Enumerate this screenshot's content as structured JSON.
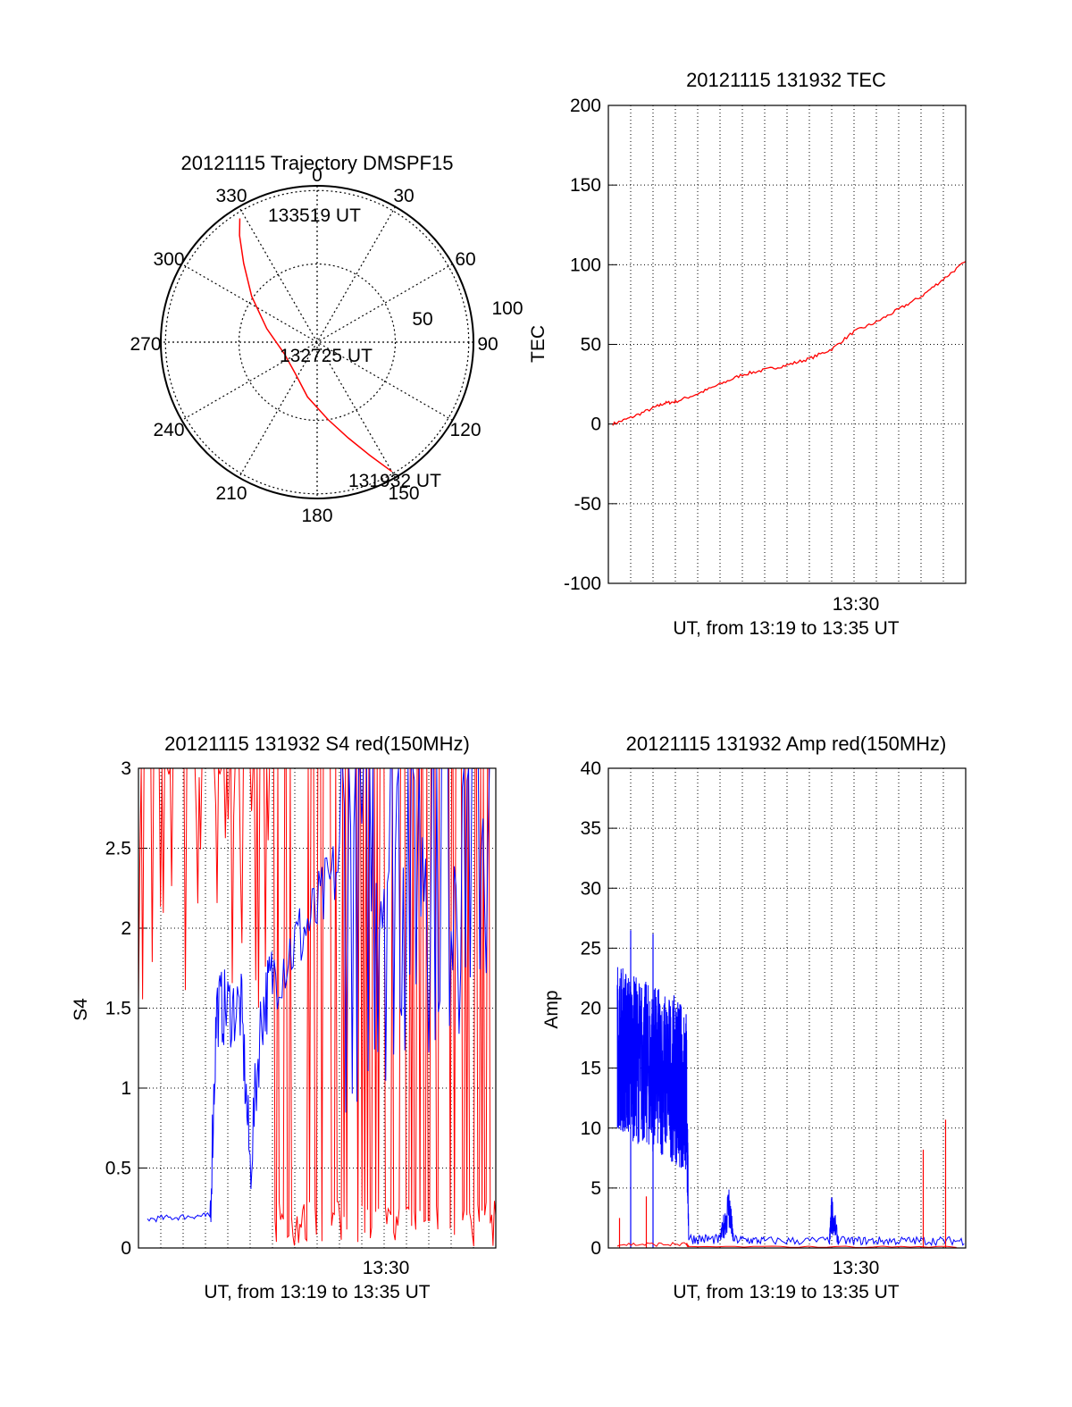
{
  "colors": {
    "red": "#ff0000",
    "blue": "#0000ff",
    "grid": "#000000"
  },
  "chart_data": [
    {
      "type": "polar-line",
      "title": "20121115 Trajectory DMSPF15",
      "azimuth_labels": [
        "0",
        "30",
        "60",
        "90",
        "120",
        "150",
        "180",
        "210",
        "240",
        "270",
        "300",
        "330"
      ],
      "radial_labels": [
        "50",
        "100"
      ],
      "annotations": [
        "133519 UT",
        "132725 UT",
        "131932 UT"
      ],
      "series": [
        {
          "color": "red",
          "points": [
            {
              "az": 150.0,
              "zen": 86
            },
            {
              "az": 155.0,
              "zen": 72
            },
            {
              "az": 162.0,
              "zen": 58
            },
            {
              "az": 172.0,
              "zen": 45
            },
            {
              "az": 190.0,
              "zen": 32
            },
            {
              "az": 215.0,
              "zen": 22
            },
            {
              "az": 250.0,
              "zen": 20
            },
            {
              "az": 285.0,
              "zen": 30
            },
            {
              "az": 305.0,
              "zen": 46
            },
            {
              "az": 317.0,
              "zen": 62
            },
            {
              "az": 324.0,
              "zen": 76
            },
            {
              "az": 328.0,
              "zen": 84
            }
          ]
        }
      ]
    },
    {
      "type": "line",
      "title": "20121115 131932 TEC",
      "ylabel": "TEC",
      "xlabel": "UT, from 13:19 to 13:35 UT",
      "xtick_label": "13:30",
      "xlim": [
        0,
        16
      ],
      "ylim": [
        -100,
        200
      ],
      "yticks": [
        "-100",
        "-50",
        "0",
        "50",
        "100",
        "150",
        "200"
      ],
      "series": [
        {
          "color": "red",
          "x": [
            0.2,
            1.0,
            2.0,
            2.5,
            3.0,
            4.0,
            5.0,
            6.0,
            7.0,
            8.0,
            9.0,
            10.0,
            11.0,
            12.0,
            13.0,
            14.0,
            15.0,
            16.0
          ],
          "y": [
            0,
            4,
            10,
            13,
            14,
            19,
            25,
            31,
            34,
            37,
            41,
            47,
            58,
            64,
            72,
            80,
            91,
            102
          ]
        }
      ]
    },
    {
      "type": "line",
      "title": "20121115 131932 S4 red(150MHz)",
      "ylabel": "S4",
      "xlabel": "UT, from 13:19 to 13:35 UT",
      "xtick_label": "13:30",
      "xlim": [
        0,
        16
      ],
      "ylim": [
        0,
        3
      ],
      "yticks": [
        "0",
        "0.5",
        "1",
        "1.5",
        "2",
        "2.5",
        "3"
      ],
      "series": [
        {
          "color": "red",
          "x_range": [
            0,
            16
          ],
          "y_range": [
            0,
            3
          ],
          "pattern": "saturated-noise"
        },
        {
          "color": "blue",
          "x": [
            0.4,
            1.5,
            2.5,
            3.2,
            3.5,
            4.0,
            4.6,
            5.0,
            5.5,
            6.0,
            7.0,
            8.0,
            9.0,
            10.0,
            11.0,
            12.0,
            13.0,
            14.0,
            15.0,
            16.0
          ],
          "y": [
            0.18,
            0.19,
            0.2,
            0.2,
            1.5,
            1.5,
            1.5,
            0.5,
            1.45,
            1.7,
            1.9,
            2.1,
            2.4,
            2.5,
            2.6,
            2.7,
            2.8,
            2.8,
            2.9,
            2.8
          ]
        }
      ]
    },
    {
      "type": "line",
      "title": "20121115 131932 Amp red(150MHz)",
      "ylabel": "Amp",
      "xlabel": "UT, from 13:19 to 13:35 UT",
      "xtick_label": "13:30",
      "xlim": [
        0,
        16
      ],
      "ylim": [
        0,
        40
      ],
      "yticks": [
        "0",
        "5",
        "10",
        "15",
        "20",
        "25",
        "30",
        "35",
        "40"
      ],
      "series": [
        {
          "color": "blue",
          "x": [
            0.4,
            1.0,
            2.0,
            3.0,
            3.5,
            3.6,
            5.0,
            5.4,
            5.6,
            7.0,
            9.9,
            10.0,
            10.3,
            12.0,
            14.0,
            16.0
          ],
          "y": [
            17,
            16,
            15,
            14,
            13,
            0.8,
            0.7,
            3.5,
            0.7,
            0.6,
            0.6,
            3.0,
            0.6,
            0.6,
            0.6,
            0.6
          ],
          "peaks": [
            {
              "x": 1.0,
              "y": 26.5
            },
            {
              "x": 2.0,
              "y": 26.2
            }
          ]
        },
        {
          "color": "red",
          "x": [
            0.4,
            3.5,
            3.6,
            16.0
          ],
          "y": [
            0.3,
            0.3,
            0.1,
            0.1
          ],
          "peaks": [
            {
              "x": 0.5,
              "y": 2.5
            },
            {
              "x": 1.7,
              "y": 4.3
            },
            {
              "x": 14.1,
              "y": 8.2
            },
            {
              "x": 15.1,
              "y": 10.7
            }
          ]
        }
      ]
    }
  ]
}
